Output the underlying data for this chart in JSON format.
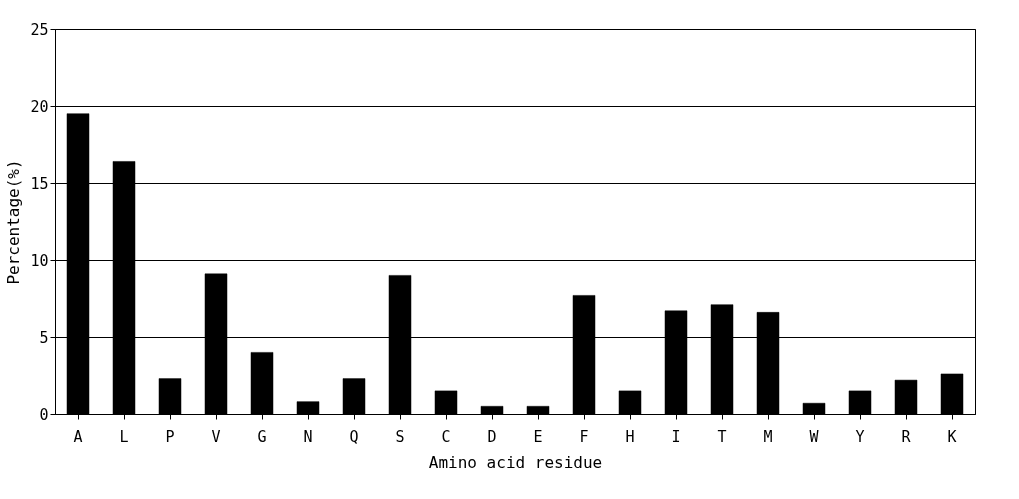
{
  "chart_data": {
    "type": "bar",
    "xlabel": "Amino acid residue",
    "ylabel": "Percentage(%)",
    "categories": [
      "A",
      "L",
      "P",
      "V",
      "G",
      "N",
      "Q",
      "S",
      "C",
      "D",
      "E",
      "F",
      "H",
      "I",
      "T",
      "M",
      "W",
      "Y",
      "R",
      "K"
    ],
    "values": [
      19.5,
      16.4,
      2.3,
      9.1,
      4.0,
      0.8,
      2.3,
      9.0,
      1.5,
      0.5,
      0.5,
      7.7,
      1.5,
      6.7,
      7.1,
      6.6,
      0.7,
      1.5,
      2.2,
      2.6
    ],
    "color": "#000000",
    "ylim": [
      0,
      25
    ],
    "yticks": [
      0,
      5,
      10,
      15,
      20,
      25
    ],
    "grid": "y"
  }
}
